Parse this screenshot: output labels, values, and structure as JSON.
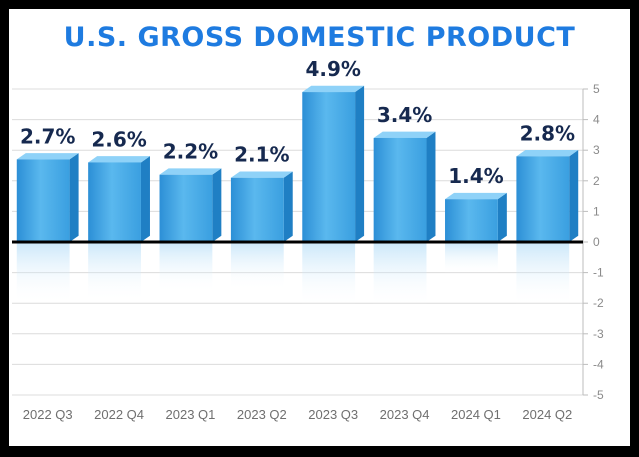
{
  "chart_data": {
    "type": "bar",
    "title": "U.S. GROSS DOMESTIC PRODUCT",
    "categories": [
      "2022 Q3",
      "2022 Q4",
      "2023 Q1",
      "2023 Q2",
      "2023 Q3",
      "2023 Q4",
      "2024 Q1",
      "2024 Q2"
    ],
    "values": [
      2.7,
      2.6,
      2.2,
      2.1,
      4.9,
      3.4,
      1.4,
      2.8
    ],
    "data_labels": [
      "2.7%",
      "2.6%",
      "2.2%",
      "2.1%",
      "4.9%",
      "3.4%",
      "1.4%",
      "2.8%"
    ],
    "y_ticks": [
      5,
      4,
      3,
      2,
      1,
      0,
      -1,
      -2,
      -3,
      -4,
      -5
    ],
    "ylim": [
      -5,
      5
    ],
    "xlabel": "",
    "ylabel": "",
    "grid": true,
    "y_axis_side": "right",
    "colors": {
      "bar": "#3aa6e8",
      "bar_top": "#8fd2f8",
      "bar_side": "#1f7fc4",
      "title": "#1e7be0",
      "label": "#16294f",
      "zero_line": "#000000"
    }
  }
}
